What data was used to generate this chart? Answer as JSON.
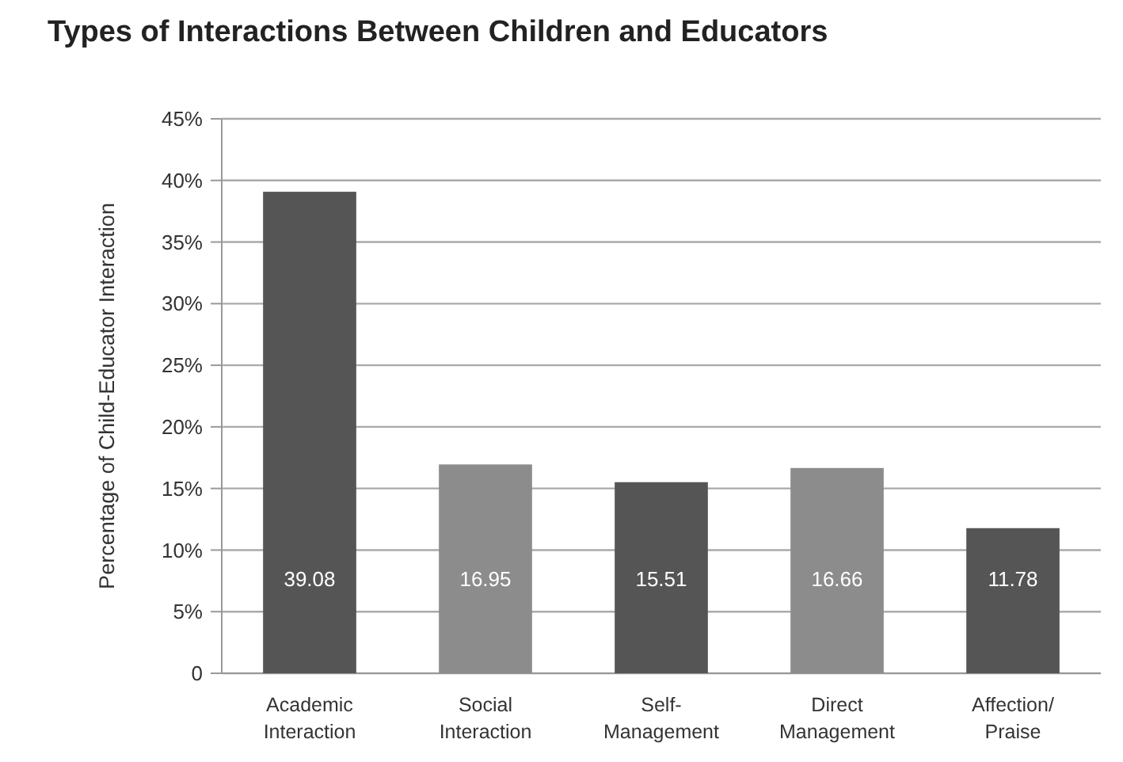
{
  "chart_data": {
    "type": "bar",
    "title": "Types of Interactions Between Children and Educators",
    "ylabel": "Percentage of Child-Educator Interaction",
    "categories": [
      "Academic Interaction",
      "Social Interaction",
      "Self-Management",
      "Direct Management",
      "Affection/Praise"
    ],
    "values": [
      39.08,
      16.95,
      15.51,
      16.66,
      11.78
    ],
    "colors": [
      "#555555",
      "#8c8c8c",
      "#555555",
      "#8c8c8c",
      "#555555"
    ],
    "data_labels": true,
    "grid": "y",
    "ylim": [
      0,
      45
    ],
    "yticks": [
      {
        "value": 0,
        "label": "0"
      },
      {
        "value": 5,
        "label": "5%"
      },
      {
        "value": 10,
        "label": "10%"
      },
      {
        "value": 15,
        "label": "15%"
      },
      {
        "value": 20,
        "label": "20%"
      },
      {
        "value": 25,
        "label": "25%"
      },
      {
        "value": 30,
        "label": "30%"
      },
      {
        "value": 35,
        "label": "35%"
      },
      {
        "value": 40,
        "label": "40%"
      },
      {
        "value": 45,
        "label": "45%"
      }
    ]
  }
}
